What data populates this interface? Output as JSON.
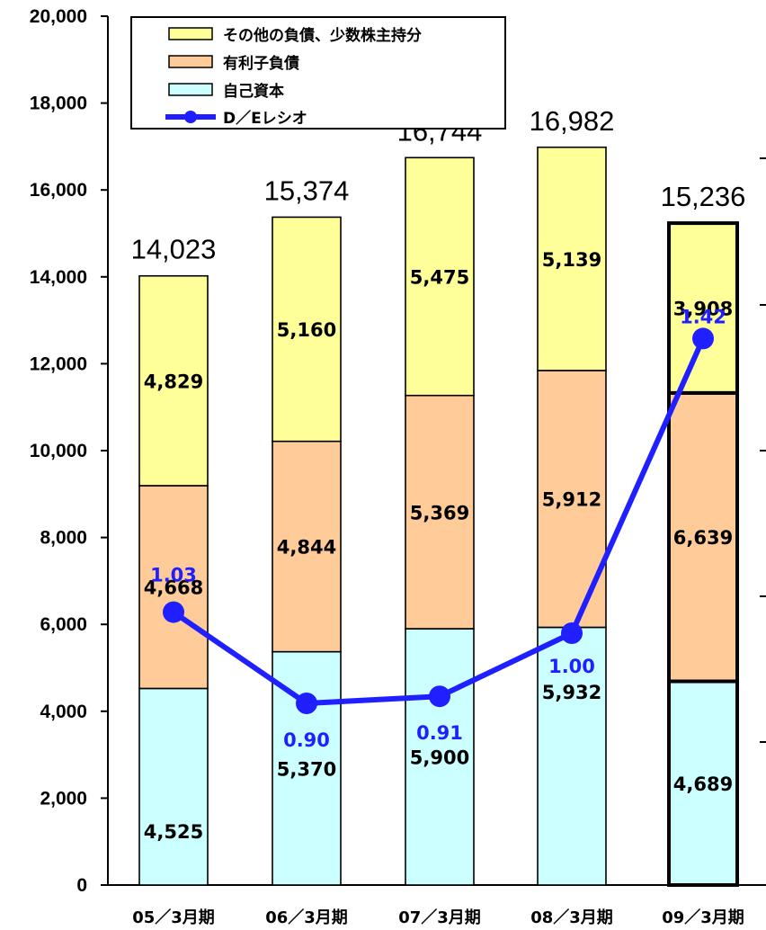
{
  "chart_data": {
    "type": "bar",
    "stacked": true,
    "categories": [
      "05／3月期",
      "06／3月期",
      "07／3月期",
      "08／3月期",
      "09／3月期"
    ],
    "series": [
      {
        "name": "自己資本",
        "color": "#ccffff",
        "values": [
          4525,
          5370,
          5900,
          5932,
          4689
        ]
      },
      {
        "name": "有利子負債",
        "color": "#ffcc99",
        "values": [
          4668,
          4844,
          5369,
          5912,
          6639
        ]
      },
      {
        "name": "その他の負債、少数株主持分",
        "color": "#ffff99",
        "values": [
          4829,
          5160,
          5475,
          5139,
          3908
        ]
      }
    ],
    "totals": [
      14023,
      15374,
      16744,
      16982,
      15236
    ],
    "line_series": {
      "name": "D／Eレシオ",
      "color": "#1f1fff",
      "values": [
        1.03,
        0.9,
        0.91,
        1.0,
        1.42
      ]
    },
    "display": {
      "series_values": [
        [
          "4,525",
          "5,370",
          "5,900",
          "5,932",
          "4,689"
        ],
        [
          "4,668",
          "4,844",
          "5,369",
          "5,912",
          "6,639"
        ],
        [
          "4,829",
          "5,160",
          "5,475",
          "5,139",
          "3,908"
        ]
      ],
      "totals": [
        "14,023",
        "15,374",
        "16,744",
        "16,982",
        "15,236"
      ],
      "ratios": [
        "1.03",
        "0.90",
        "0.91",
        "1.00",
        "1.42"
      ]
    },
    "ylim": [
      0,
      20000
    ],
    "yticks": [
      0,
      2000,
      4000,
      6000,
      8000,
      10000,
      12000,
      14000,
      16000,
      18000,
      20000
    ],
    "ytick_labels": [
      "0",
      "2,000",
      "4,000",
      "6,000",
      "8,000",
      "10,000",
      "12,000",
      "14,000",
      "16,000",
      "18,000",
      "20,000"
    ],
    "legend": {
      "placement": "top-left",
      "entries": [
        "その他の負債、少数株主持分",
        "有利子負債",
        "自己資本",
        "D／Eレシオ"
      ]
    },
    "highlighted_category_index": 4,
    "grid": false,
    "title": "",
    "xlabel": "",
    "ylabel": ""
  }
}
